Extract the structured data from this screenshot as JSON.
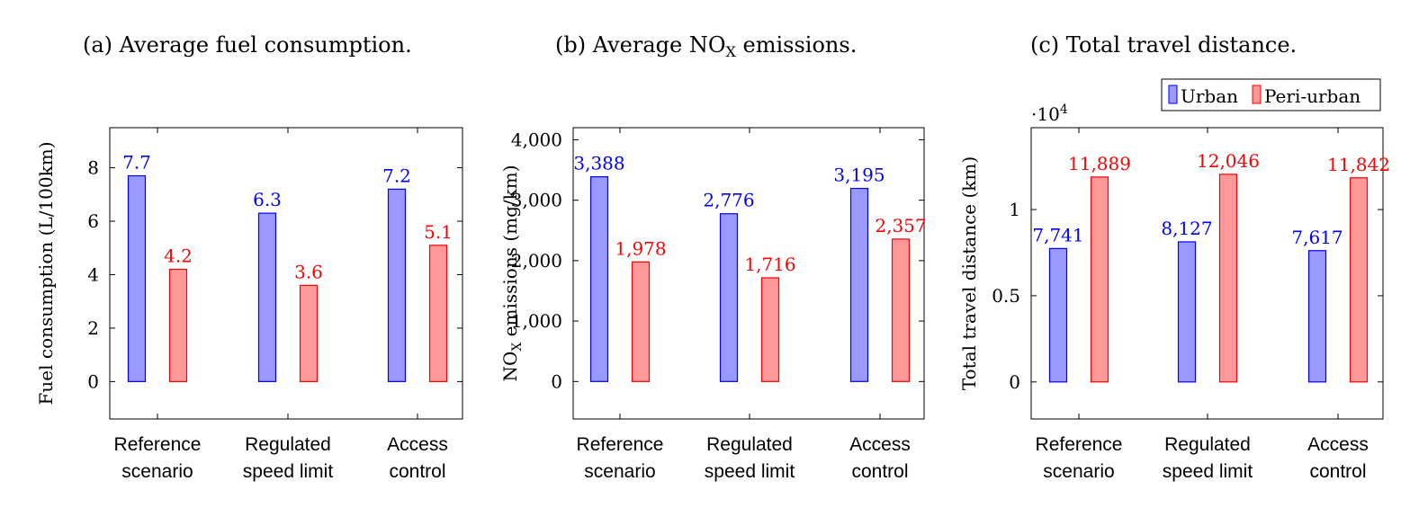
{
  "legend": {
    "position": "top-right",
    "items": [
      {
        "label": "Urban",
        "color": "#0000ff",
        "fill": "#9999ff"
      },
      {
        "label": "Peri-urban",
        "color": "#ff0000",
        "fill": "#ff9999"
      }
    ]
  },
  "chart_data": [
    {
      "type": "bar",
      "title": "(a) Average fuel consumption.",
      "ylabel": "Fuel consumption (L/100km)",
      "xlabel": "",
      "categories": [
        [
          "Reference",
          "scenario"
        ],
        [
          "Regulated",
          "speed limit"
        ],
        [
          "Access",
          "control"
        ]
      ],
      "series": [
        {
          "name": "Urban",
          "values": [
            7.7,
            6.3,
            7.2
          ],
          "labels": [
            "7.7",
            "6.3",
            "7.2"
          ],
          "color": "#0000ff"
        },
        {
          "name": "Peri-urban",
          "values": [
            4.2,
            3.6,
            5.1
          ],
          "labels": [
            "4.2",
            "3.6",
            "5.1"
          ],
          "color": "#ff0000"
        }
      ],
      "ylim": [
        -1.4,
        9.5
      ],
      "yticks": [
        0,
        2,
        4,
        6,
        8
      ],
      "ytick_labels": [
        "0",
        "2",
        "4",
        "6",
        "8"
      ],
      "scale_label": "",
      "grid": false
    },
    {
      "type": "bar",
      "title": "(b) Average NOX emissions.",
      "ylabel": "NOX emissions (mg/km)",
      "xlabel": "",
      "categories": [
        [
          "Reference",
          "scenario"
        ],
        [
          "Regulated",
          "speed limit"
        ],
        [
          "Access",
          "control"
        ]
      ],
      "series": [
        {
          "name": "Urban",
          "values": [
            3388,
            2776,
            3195
          ],
          "labels": [
            "3,388",
            "2,776",
            "3,195"
          ],
          "color": "#0000ff"
        },
        {
          "name": "Peri-urban",
          "values": [
            1978,
            1716,
            2357
          ],
          "labels": [
            "1,978",
            "1,716",
            "2,357"
          ],
          "color": "#ff0000"
        }
      ],
      "ylim": [
        -620,
        4200
      ],
      "yticks": [
        0,
        1000,
        2000,
        3000,
        4000
      ],
      "ytick_labels": [
        "0",
        "1,000",
        "2,000",
        "3,000",
        "4,000"
      ],
      "scale_label": "",
      "grid": false
    },
    {
      "type": "bar",
      "title": "(c) Total travel distance.",
      "ylabel": "Total travel distance (km)",
      "xlabel": "",
      "categories": [
        [
          "Reference",
          "scenario"
        ],
        [
          "Regulated",
          "speed limit"
        ],
        [
          "Access",
          "control"
        ]
      ],
      "series": [
        {
          "name": "Urban",
          "values": [
            7741,
            8127,
            7617
          ],
          "labels": [
            "7,741",
            "8,127",
            "7,617"
          ],
          "color": "#0000ff"
        },
        {
          "name": "Peri-urban",
          "values": [
            11889,
            12046,
            11842
          ],
          "labels": [
            "11,889",
            "12,046",
            "11,842"
          ],
          "color": "#ff0000"
        }
      ],
      "ylim": [
        -2150,
        14750
      ],
      "yticks": [
        0,
        5000,
        10000
      ],
      "ytick_labels": [
        "0",
        "0.5",
        "1"
      ],
      "scale_label": "·10",
      "scale_exp": "4",
      "grid": false
    }
  ]
}
